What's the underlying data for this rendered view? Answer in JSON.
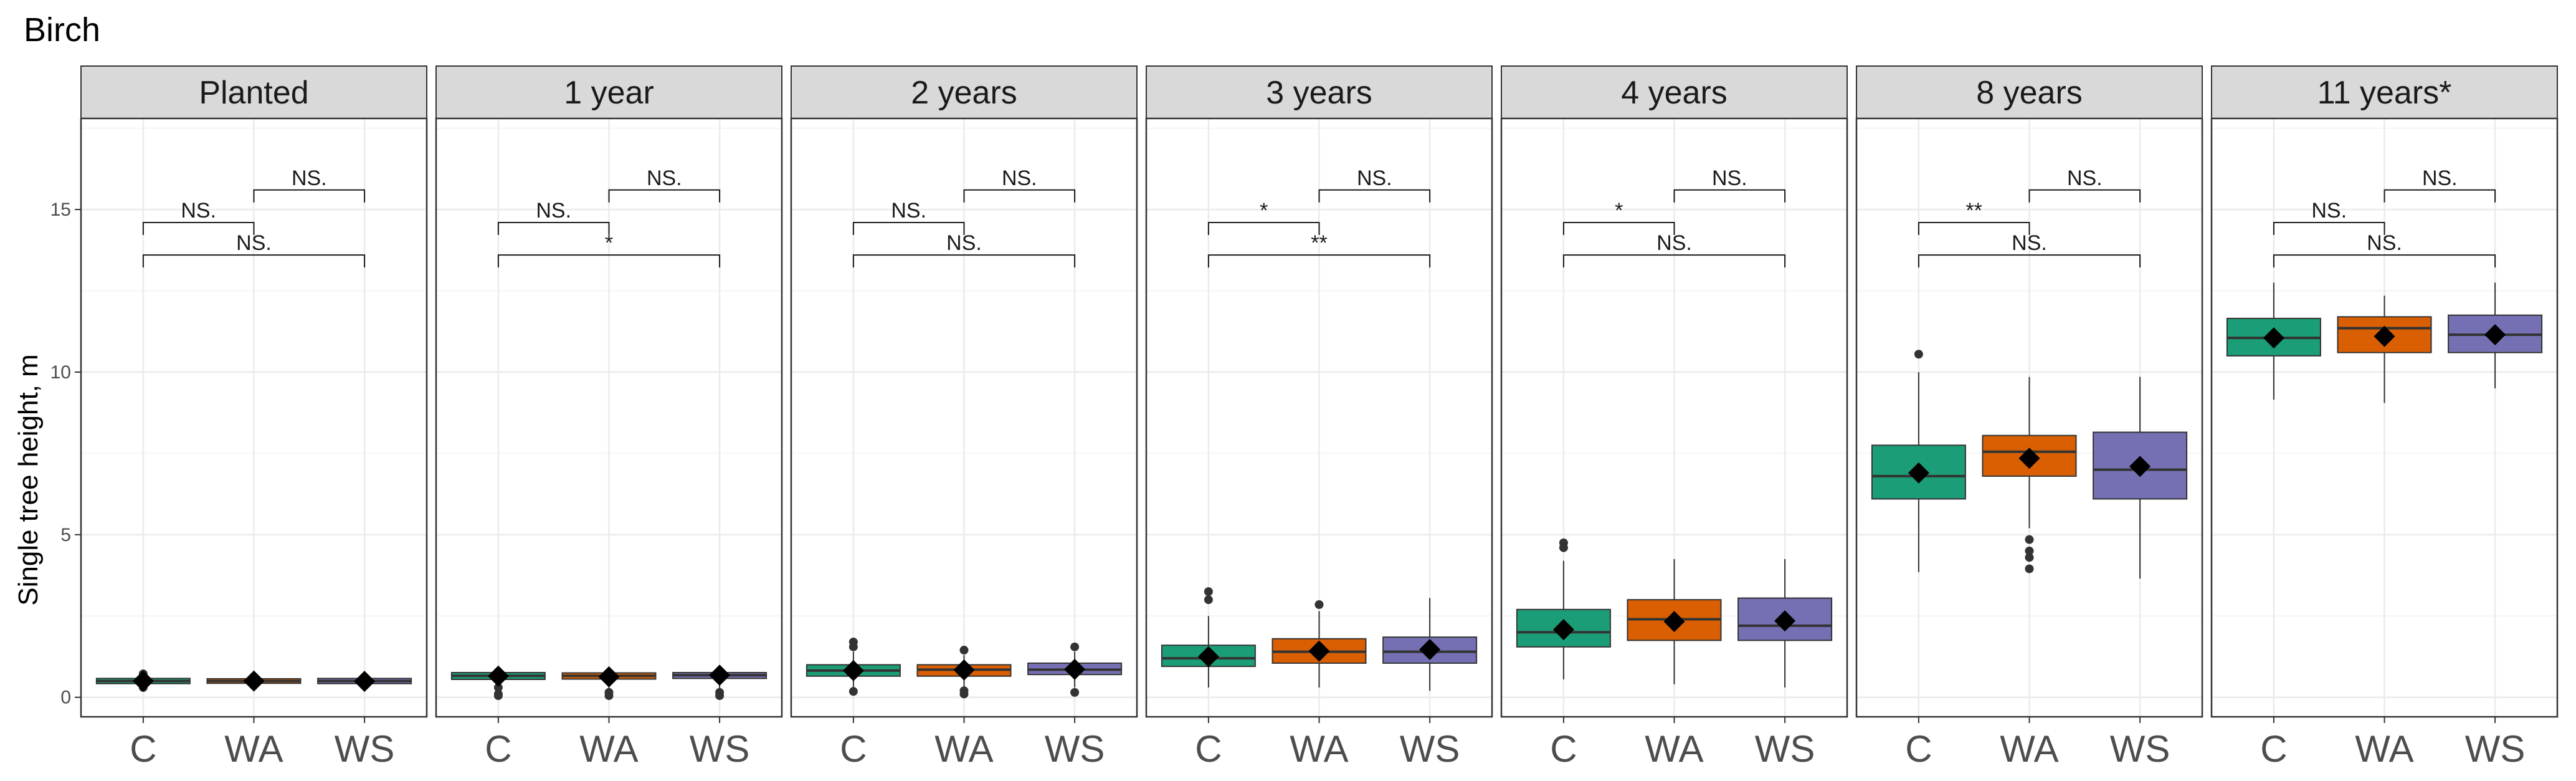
{
  "chart_data": {
    "type": "box",
    "title": "Birch",
    "ylabel": "Single tree height, m",
    "xlabel": "",
    "ylim": [
      -0.6,
      17.8
    ],
    "yticks": [
      0,
      5,
      10,
      15
    ],
    "categories": [
      "C",
      "WA",
      "WS"
    ],
    "colors": {
      "C": "#1b9e77",
      "WA": "#d95f02",
      "WS": "#7570b3"
    },
    "panels": [
      {
        "label": "Planted",
        "boxes": [
          {
            "cat": "C",
            "lw": 0.35,
            "q1": 0.42,
            "median": 0.5,
            "q3": 0.58,
            "uw": 0.68,
            "mean": 0.5,
            "outliers": [
              0.3,
              0.72
            ]
          },
          {
            "cat": "WA",
            "lw": 0.38,
            "q1": 0.43,
            "median": 0.5,
            "q3": 0.57,
            "uw": 0.65,
            "mean": 0.5,
            "outliers": []
          },
          {
            "cat": "WS",
            "lw": 0.35,
            "q1": 0.42,
            "median": 0.5,
            "q3": 0.58,
            "uw": 0.65,
            "mean": 0.49,
            "outliers": []
          }
        ],
        "comparisons": [
          {
            "from": "C",
            "to": "WA",
            "y": 14.6,
            "label": "NS."
          },
          {
            "from": "WA",
            "to": "WS",
            "y": 15.6,
            "label": "NS."
          },
          {
            "from": "C",
            "to": "WS",
            "y": 13.6,
            "label": "NS."
          }
        ]
      },
      {
        "label": "1 year",
        "boxes": [
          {
            "cat": "C",
            "lw": 0.15,
            "q1": 0.55,
            "median": 0.66,
            "q3": 0.76,
            "uw": 0.9,
            "mean": 0.65,
            "outliers": [
              0.05,
              0.1,
              0.3
            ]
          },
          {
            "cat": "WA",
            "lw": 0.2,
            "q1": 0.56,
            "median": 0.66,
            "q3": 0.75,
            "uw": 0.88,
            "mean": 0.63,
            "outliers": [
              0.05,
              0.15
            ]
          },
          {
            "cat": "WS",
            "lw": 0.2,
            "q1": 0.58,
            "median": 0.68,
            "q3": 0.76,
            "uw": 0.92,
            "mean": 0.68,
            "outliers": [
              0.05,
              0.15
            ]
          }
        ],
        "comparisons": [
          {
            "from": "C",
            "to": "WA",
            "y": 14.6,
            "label": "NS."
          },
          {
            "from": "WA",
            "to": "WS",
            "y": 15.6,
            "label": "NS."
          },
          {
            "from": "C",
            "to": "WS",
            "y": 13.6,
            "label": "*"
          }
        ]
      },
      {
        "label": "2 years",
        "boxes": [
          {
            "cat": "C",
            "lw": 0.3,
            "q1": 0.65,
            "median": 0.82,
            "q3": 1.0,
            "uw": 1.4,
            "mean": 0.82,
            "outliers": [
              0.18,
              1.55,
              1.7
            ]
          },
          {
            "cat": "WA",
            "lw": 0.3,
            "q1": 0.65,
            "median": 0.85,
            "q3": 1.0,
            "uw": 1.3,
            "mean": 0.84,
            "outliers": [
              0.1,
              0.2,
              1.45
            ]
          },
          {
            "cat": "WS",
            "lw": 0.3,
            "q1": 0.7,
            "median": 0.85,
            "q3": 1.05,
            "uw": 1.4,
            "mean": 0.86,
            "outliers": [
              0.15,
              1.55
            ]
          }
        ],
        "comparisons": [
          {
            "from": "C",
            "to": "WA",
            "y": 14.6,
            "label": "NS."
          },
          {
            "from": "WA",
            "to": "WS",
            "y": 15.6,
            "label": "NS."
          },
          {
            "from": "C",
            "to": "WS",
            "y": 13.6,
            "label": "NS."
          }
        ]
      },
      {
        "label": "3 years",
        "boxes": [
          {
            "cat": "C",
            "lw": 0.3,
            "q1": 0.95,
            "median": 1.2,
            "q3": 1.6,
            "uw": 2.5,
            "mean": 1.25,
            "outliers": [
              3.0,
              3.25
            ]
          },
          {
            "cat": "WA",
            "lw": 0.3,
            "q1": 1.05,
            "median": 1.4,
            "q3": 1.8,
            "uw": 2.65,
            "mean": 1.42,
            "outliers": [
              2.85
            ]
          },
          {
            "cat": "WS",
            "lw": 0.2,
            "q1": 1.05,
            "median": 1.4,
            "q3": 1.85,
            "uw": 3.05,
            "mean": 1.47,
            "outliers": []
          }
        ],
        "comparisons": [
          {
            "from": "C",
            "to": "WA",
            "y": 14.6,
            "label": "*"
          },
          {
            "from": "WA",
            "to": "WS",
            "y": 15.6,
            "label": "NS."
          },
          {
            "from": "C",
            "to": "WS",
            "y": 13.6,
            "label": "**"
          }
        ]
      },
      {
        "label": "4 years",
        "boxes": [
          {
            "cat": "C",
            "lw": 0.55,
            "q1": 1.55,
            "median": 2.0,
            "q3": 2.7,
            "uw": 4.2,
            "mean": 2.08,
            "outliers": [
              4.6,
              4.75
            ]
          },
          {
            "cat": "WA",
            "lw": 0.4,
            "q1": 1.75,
            "median": 2.4,
            "q3": 3.0,
            "uw": 4.25,
            "mean": 2.33,
            "outliers": []
          },
          {
            "cat": "WS",
            "lw": 0.3,
            "q1": 1.75,
            "median": 2.2,
            "q3": 3.05,
            "uw": 4.25,
            "mean": 2.35,
            "outliers": []
          }
        ],
        "comparisons": [
          {
            "from": "C",
            "to": "WA",
            "y": 14.6,
            "label": "*"
          },
          {
            "from": "WA",
            "to": "WS",
            "y": 15.6,
            "label": "NS."
          },
          {
            "from": "C",
            "to": "WS",
            "y": 13.6,
            "label": "NS."
          }
        ]
      },
      {
        "label": "8 years",
        "boxes": [
          {
            "cat": "C",
            "lw": 3.85,
            "q1": 6.1,
            "median": 6.8,
            "q3": 7.75,
            "uw": 10.0,
            "mean": 6.9,
            "outliers": [
              10.55
            ]
          },
          {
            "cat": "WA",
            "lw": 5.2,
            "q1": 6.8,
            "median": 7.55,
            "q3": 8.05,
            "uw": 9.85,
            "mean": 7.35,
            "outliers": [
              3.95,
              4.3,
              4.5,
              4.85
            ]
          },
          {
            "cat": "WS",
            "lw": 3.65,
            "q1": 6.1,
            "median": 7.0,
            "q3": 8.15,
            "uw": 9.85,
            "mean": 7.1,
            "outliers": []
          }
        ],
        "comparisons": [
          {
            "from": "C",
            "to": "WA",
            "y": 14.6,
            "label": "**"
          },
          {
            "from": "WA",
            "to": "WS",
            "y": 15.6,
            "label": "NS."
          },
          {
            "from": "C",
            "to": "WS",
            "y": 13.6,
            "label": "NS."
          }
        ]
      },
      {
        "label": "11 years*",
        "boxes": [
          {
            "cat": "C",
            "lw": 9.15,
            "q1": 10.5,
            "median": 11.05,
            "q3": 11.65,
            "uw": 12.75,
            "mean": 11.05,
            "outliers": []
          },
          {
            "cat": "WA",
            "lw": 9.05,
            "q1": 10.6,
            "median": 11.35,
            "q3": 11.7,
            "uw": 12.35,
            "mean": 11.1,
            "outliers": []
          },
          {
            "cat": "WS",
            "lw": 9.5,
            "q1": 10.6,
            "median": 11.15,
            "q3": 11.75,
            "uw": 12.75,
            "mean": 11.15,
            "outliers": []
          }
        ],
        "comparisons": [
          {
            "from": "C",
            "to": "WA",
            "y": 14.6,
            "label": "NS."
          },
          {
            "from": "WA",
            "to": "WS",
            "y": 15.6,
            "label": "NS."
          },
          {
            "from": "C",
            "to": "WS",
            "y": 13.6,
            "label": "NS."
          }
        ]
      }
    ]
  }
}
